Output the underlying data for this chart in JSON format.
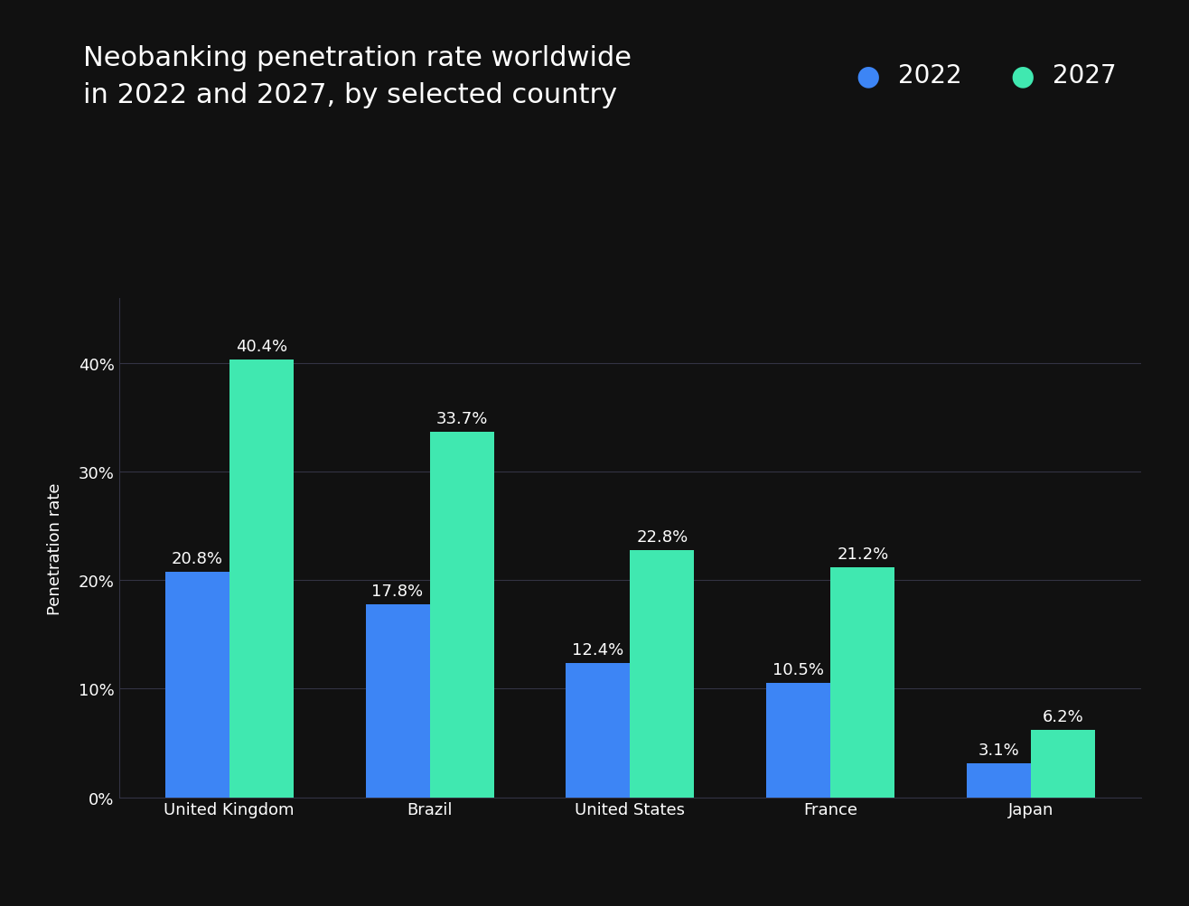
{
  "title": "Neobanking penetration rate worldwide\nin 2022 and 2027, by selected country",
  "ylabel": "Penetration rate",
  "categories": [
    "United Kingdom",
    "Brazil",
    "United States",
    "France",
    "Japan"
  ],
  "values_2022": [
    20.8,
    17.8,
    12.4,
    10.5,
    3.1
  ],
  "values_2027": [
    40.4,
    33.7,
    22.8,
    21.2,
    6.2
  ],
  "color_2022": "#3d85f5",
  "color_2027": "#40e8b0",
  "background_color": "#111111",
  "text_color": "#ffffff",
  "grid_color": "#333344",
  "bar_width": 0.32,
  "ylim": [
    0,
    46
  ],
  "yticks": [
    0,
    10,
    20,
    30,
    40
  ],
  "ytick_labels": [
    "0%",
    "10%",
    "20%",
    "30%",
    "40%"
  ],
  "title_fontsize": 22,
  "label_fontsize": 13,
  "tick_fontsize": 13,
  "annotation_fontsize": 13,
  "legend_fontsize": 20,
  "legend_2022": "2022",
  "legend_2027": "2027"
}
